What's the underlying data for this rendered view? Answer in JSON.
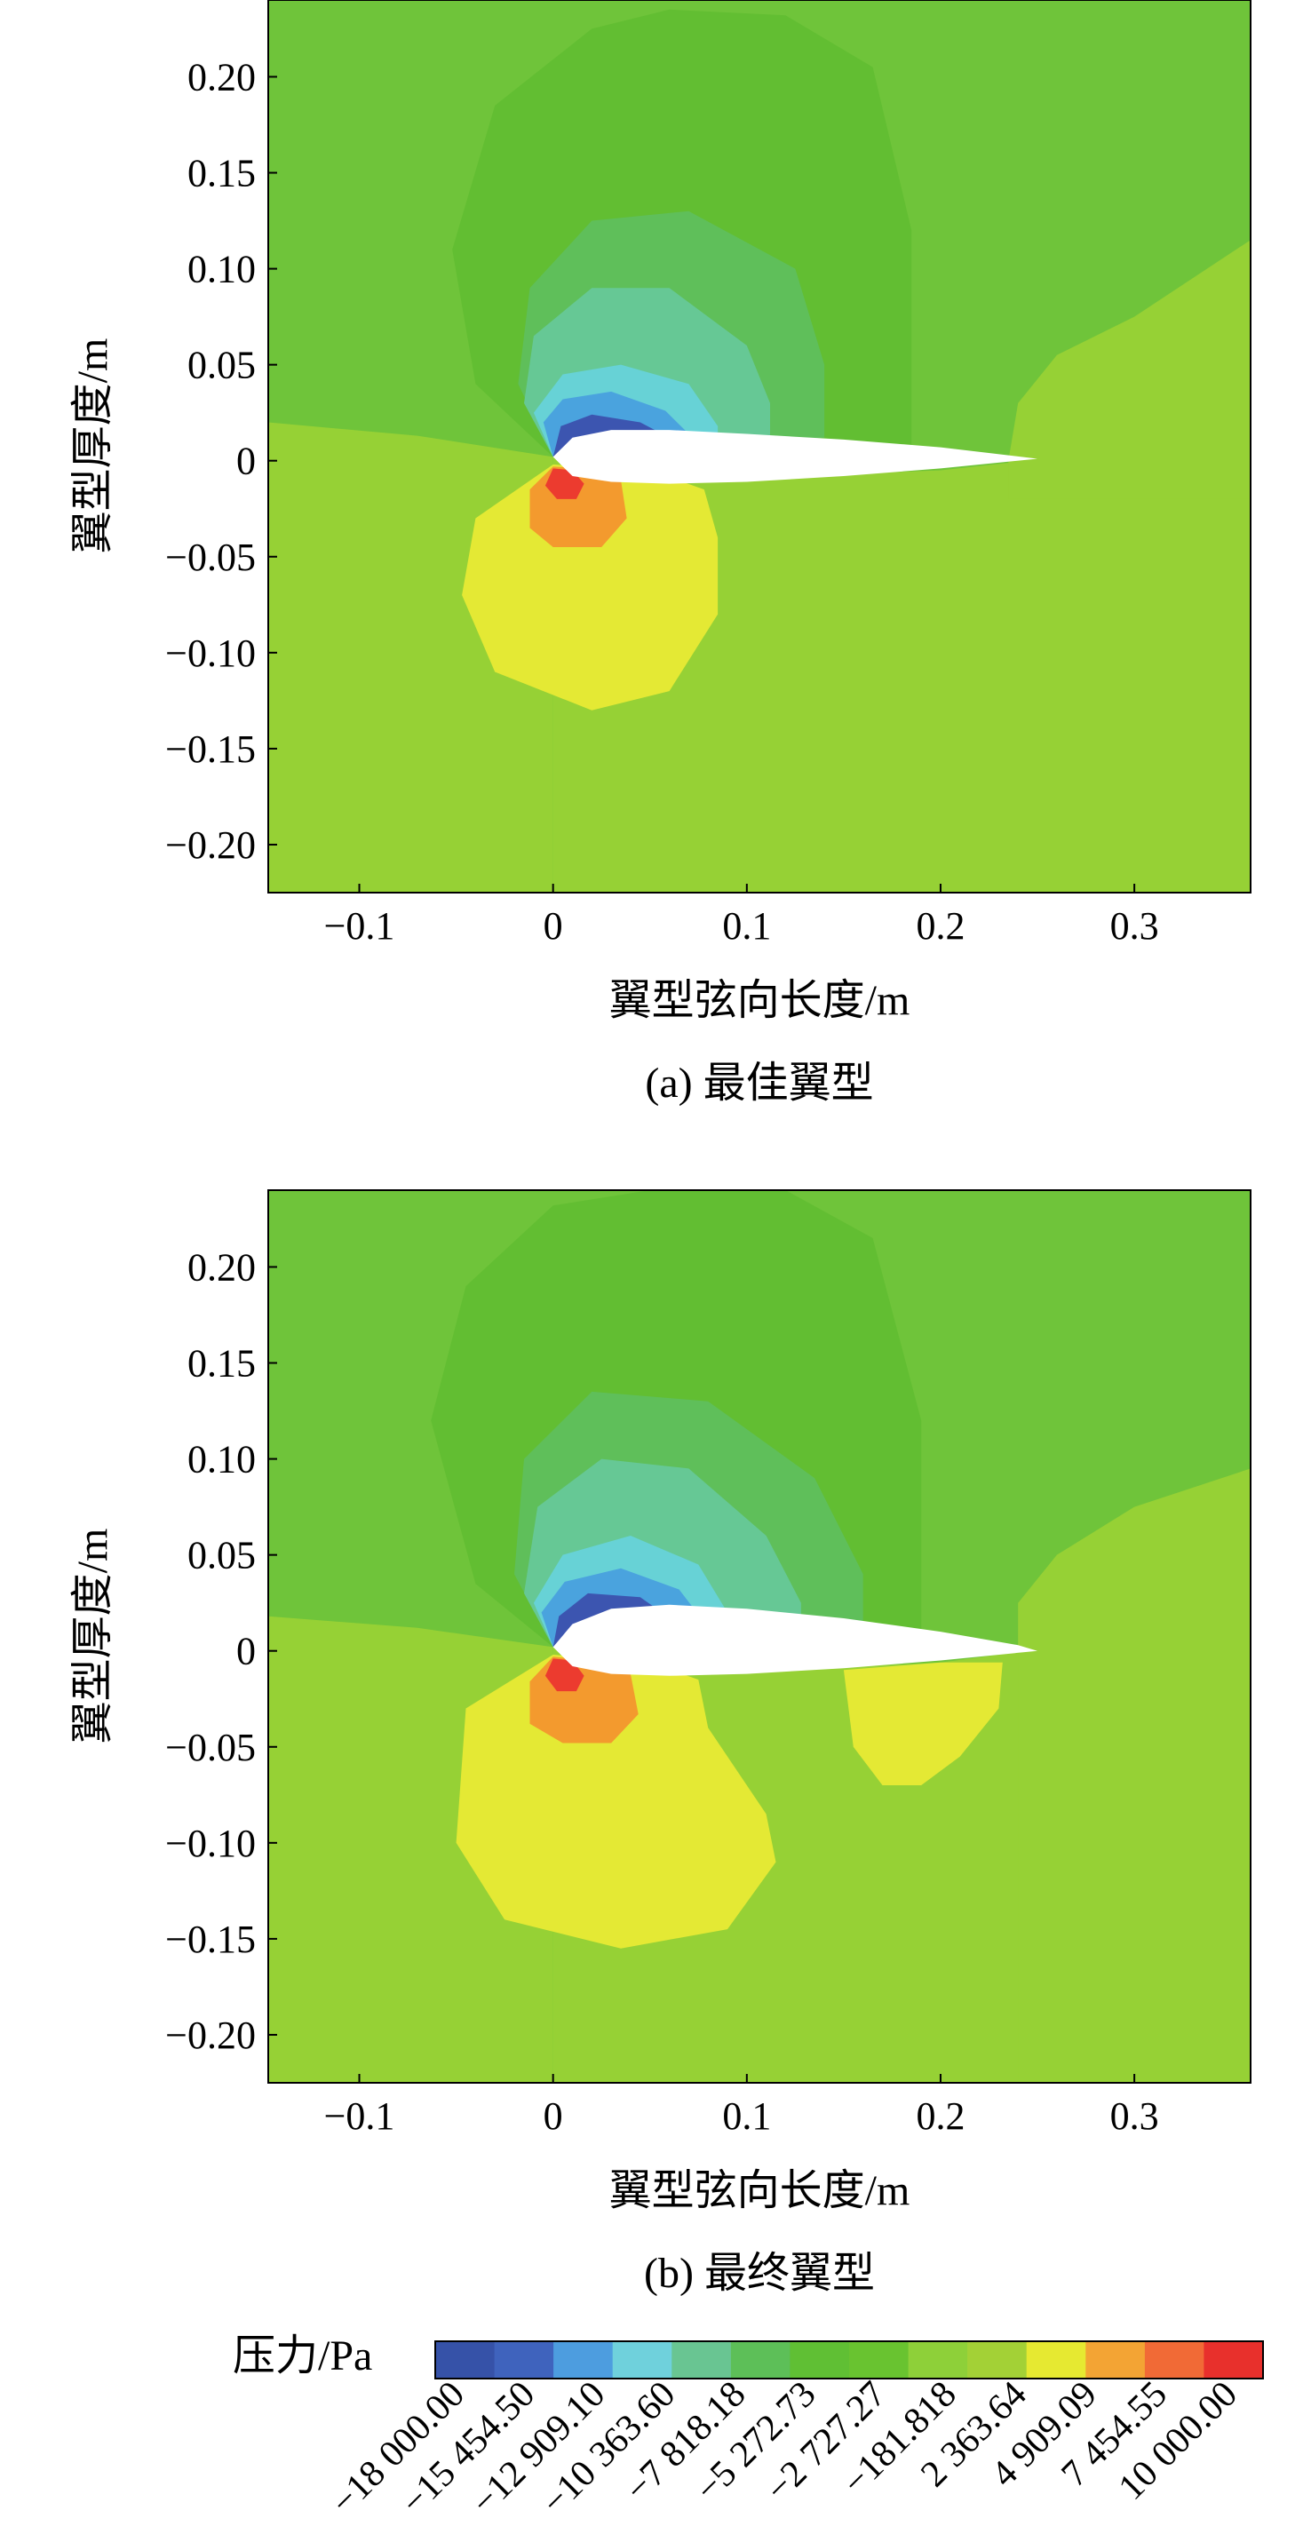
{
  "chart_data": [
    {
      "type": "heatmap",
      "caption": "(a) 最佳翼型",
      "xlabel": "翼型弦向长度/m",
      "ylabel": "翼型厚度/m",
      "xlim": [
        -0.147,
        0.36
      ],
      "ylim": [
        -0.225,
        0.24
      ],
      "xticks": [
        -0.1,
        0,
        0.1,
        0.2,
        0.3
      ],
      "xtick_labels": [
        "−0.1",
        "0",
        "0.1",
        "0.2",
        "0.3"
      ],
      "yticks": [
        0.2,
        0.15,
        0.1,
        0.05,
        0,
        -0.05,
        -0.1,
        -0.15,
        -0.2
      ],
      "ytick_labels": [
        "0.20",
        "0.15",
        "0.10",
        "0.05",
        "0",
        "−0.05",
        "−0.10",
        "−0.15",
        "−0.20"
      ],
      "background_color": "#6fc43a",
      "regions": [
        {
          "level": "-181.818",
          "color": "#96d135",
          "points": [
            [
              -0.147,
              0.02
            ],
            [
              -0.07,
              0.013
            ],
            [
              0.0,
              0.002
            ],
            [
              0.0,
              -0.225
            ],
            [
              -0.147,
              -0.225
            ]
          ]
        },
        {
          "level": "-181.818",
          "color": "#96d135",
          "points": [
            [
              0.0,
              0.002
            ],
            [
              0.05,
              -0.004
            ],
            [
              0.12,
              -0.008
            ],
            [
              0.2,
              -0.005
            ],
            [
              0.245,
              0.0
            ],
            [
              0.25,
              0.0
            ],
            [
              0.28,
              0.005
            ],
            [
              0.31,
              0.065
            ],
            [
              0.36,
              0.115
            ],
            [
              0.36,
              -0.225
            ],
            [
              0.0,
              -0.225
            ]
          ]
        },
        {
          "level": "-181.818",
          "color": "#96d135",
          "points": [
            [
              0.235,
              0.0
            ],
            [
              0.24,
              0.03
            ],
            [
              0.26,
              0.055
            ],
            [
              0.3,
              0.075
            ],
            [
              0.36,
              0.115
            ],
            [
              0.36,
              -0.02
            ],
            [
              0.235,
              -0.02
            ]
          ]
        },
        {
          "level": "-2727.27",
          "color": "#62be32",
          "points": [
            [
              0.0,
              0.002
            ],
            [
              -0.04,
              0.04
            ],
            [
              -0.052,
              0.11
            ],
            [
              -0.03,
              0.185
            ],
            [
              0.02,
              0.225
            ],
            [
              0.06,
              0.235
            ],
            [
              0.12,
              0.232
            ],
            [
              0.165,
              0.205
            ],
            [
              0.185,
              0.12
            ],
            [
              0.185,
              0.0
            ]
          ]
        },
        {
          "level": "-5272.73",
          "color": "#5fbf5a",
          "points": [
            [
              0.0,
              0.002
            ],
            [
              -0.018,
              0.04
            ],
            [
              -0.012,
              0.09
            ],
            [
              0.02,
              0.125
            ],
            [
              0.07,
              0.13
            ],
            [
              0.125,
              0.1
            ],
            [
              0.14,
              0.05
            ],
            [
              0.14,
              0.012
            ]
          ]
        },
        {
          "level": "-7818.18",
          "color": "#66c895",
          "points": [
            [
              0.0,
              0.002
            ],
            [
              -0.015,
              0.03
            ],
            [
              -0.01,
              0.065
            ],
            [
              0.02,
              0.09
            ],
            [
              0.06,
              0.09
            ],
            [
              0.1,
              0.06
            ],
            [
              0.112,
              0.03
            ],
            [
              0.112,
              0.012
            ]
          ]
        },
        {
          "level": "-10363.6",
          "color": "#67d2d6",
          "points": [
            [
              0.0,
              0.002
            ],
            [
              -0.01,
              0.025
            ],
            [
              0.005,
              0.045
            ],
            [
              0.035,
              0.05
            ],
            [
              0.07,
              0.04
            ],
            [
              0.085,
              0.018
            ],
            [
              0.085,
              0.012
            ]
          ]
        },
        {
          "level": "-12909.1",
          "color": "#4aa3de",
          "points": [
            [
              0.0,
              0.002
            ],
            [
              -0.005,
              0.02
            ],
            [
              0.005,
              0.032
            ],
            [
              0.03,
              0.036
            ],
            [
              0.058,
              0.026
            ],
            [
              0.07,
              0.014
            ]
          ]
        },
        {
          "level": "-15454.5",
          "color": "#3c55b0",
          "points": [
            [
              0.0,
              0.002
            ],
            [
              0.004,
              0.018
            ],
            [
              0.02,
              0.024
            ],
            [
              0.045,
              0.02
            ],
            [
              0.06,
              0.012
            ]
          ]
        },
        {
          "level": "4909.09",
          "color": "#e4e934",
          "points": [
            [
              0.0,
              -0.002
            ],
            [
              -0.04,
              -0.03
            ],
            [
              -0.047,
              -0.07
            ],
            [
              -0.03,
              -0.11
            ],
            [
              0.02,
              -0.13
            ],
            [
              0.06,
              -0.12
            ],
            [
              0.085,
              -0.08
            ],
            [
              0.085,
              -0.04
            ],
            [
              0.078,
              -0.015
            ],
            [
              0.05,
              -0.005
            ]
          ]
        },
        {
          "level": "7454.55",
          "color": "#f39a2e",
          "points": [
            [
              0.0,
              -0.003
            ],
            [
              -0.012,
              -0.015
            ],
            [
              -0.012,
              -0.035
            ],
            [
              0.0,
              -0.045
            ],
            [
              0.025,
              -0.045
            ],
            [
              0.038,
              -0.03
            ],
            [
              0.035,
              -0.01
            ],
            [
              0.015,
              -0.004
            ]
          ]
        },
        {
          "level": "10000",
          "color": "#ec3b2f",
          "points": [
            [
              0.0,
              -0.004
            ],
            [
              -0.004,
              -0.013
            ],
            [
              0.002,
              -0.02
            ],
            [
              0.012,
              -0.02
            ],
            [
              0.016,
              -0.012
            ],
            [
              0.01,
              -0.005
            ]
          ]
        }
      ],
      "airfoil_color": "#ffffff",
      "airfoil": [
        [
          0.0,
          0.002
        ],
        [
          0.01,
          0.012
        ],
        [
          0.03,
          0.016
        ],
        [
          0.06,
          0.016
        ],
        [
          0.1,
          0.014
        ],
        [
          0.15,
          0.011
        ],
        [
          0.2,
          0.007
        ],
        [
          0.25,
          0.001
        ],
        [
          0.2,
          -0.004
        ],
        [
          0.15,
          -0.008
        ],
        [
          0.1,
          -0.011
        ],
        [
          0.06,
          -0.012
        ],
        [
          0.03,
          -0.011
        ],
        [
          0.01,
          -0.008
        ]
      ]
    },
    {
      "type": "heatmap",
      "caption": "(b) 最终翼型",
      "xlabel": "翼型弦向长度/m",
      "ylabel": "翼型厚度/m",
      "xlim": [
        -0.147,
        0.36
      ],
      "ylim": [
        -0.225,
        0.24
      ],
      "xticks": [
        -0.1,
        0,
        0.1,
        0.2,
        0.3
      ],
      "xtick_labels": [
        "−0.1",
        "0",
        "0.1",
        "0.2",
        "0.3"
      ],
      "yticks": [
        0.2,
        0.15,
        0.1,
        0.05,
        0,
        -0.05,
        -0.1,
        -0.15,
        -0.2
      ],
      "ytick_labels": [
        "0.20",
        "0.15",
        "0.10",
        "0.05",
        "0",
        "−0.05",
        "−0.10",
        "−0.15",
        "−0.20"
      ],
      "background_color": "#6fc43a",
      "regions": [
        {
          "level": "-181.818",
          "color": "#96d135",
          "points": [
            [
              -0.147,
              0.018
            ],
            [
              -0.07,
              0.012
            ],
            [
              0.0,
              0.002
            ],
            [
              0.0,
              -0.225
            ],
            [
              -0.147,
              -0.225
            ]
          ]
        },
        {
          "level": "-181.818",
          "color": "#96d135",
          "points": [
            [
              0.0,
              0.002
            ],
            [
              0.05,
              -0.005
            ],
            [
              0.12,
              -0.01
            ],
            [
              0.2,
              -0.006
            ],
            [
              0.245,
              0.0
            ],
            [
              0.255,
              0.0
            ],
            [
              0.26,
              -0.225
            ],
            [
              0.0,
              -0.225
            ]
          ]
        },
        {
          "level": "-181.818",
          "color": "#96d135",
          "points": [
            [
              0.24,
              0.0
            ],
            [
              0.24,
              0.025
            ],
            [
              0.26,
              0.05
            ],
            [
              0.3,
              0.075
            ],
            [
              0.36,
              0.095
            ],
            [
              0.36,
              -0.225
            ],
            [
              0.24,
              -0.225
            ]
          ]
        },
        {
          "level": "-2727.27",
          "color": "#62be32",
          "points": [
            [
              0.0,
              0.002
            ],
            [
              -0.04,
              0.035
            ],
            [
              -0.063,
              0.12
            ],
            [
              -0.045,
              0.19
            ],
            [
              0.0,
              0.232
            ],
            [
              0.05,
              0.24
            ],
            [
              0.12,
              0.24
            ],
            [
              0.165,
              0.215
            ],
            [
              0.19,
              0.12
            ],
            [
              0.19,
              0.005
            ]
          ]
        },
        {
          "level": "-5272.73",
          "color": "#5fbf5a",
          "points": [
            [
              0.0,
              0.002
            ],
            [
              -0.02,
              0.04
            ],
            [
              -0.015,
              0.1
            ],
            [
              0.02,
              0.135
            ],
            [
              0.08,
              0.13
            ],
            [
              0.135,
              0.09
            ],
            [
              0.16,
              0.04
            ],
            [
              0.16,
              0.01
            ]
          ]
        },
        {
          "level": "-7818.18",
          "color": "#66c895",
          "points": [
            [
              0.0,
              0.002
            ],
            [
              -0.015,
              0.03
            ],
            [
              -0.008,
              0.075
            ],
            [
              0.025,
              0.1
            ],
            [
              0.07,
              0.095
            ],
            [
              0.11,
              0.06
            ],
            [
              0.128,
              0.025
            ],
            [
              0.128,
              0.01
            ]
          ]
        },
        {
          "level": "-10363.6",
          "color": "#67d2d6",
          "points": [
            [
              0.0,
              0.002
            ],
            [
              -0.01,
              0.025
            ],
            [
              0.005,
              0.05
            ],
            [
              0.04,
              0.06
            ],
            [
              0.075,
              0.045
            ],
            [
              0.09,
              0.02
            ],
            [
              0.09,
              0.012
            ]
          ]
        },
        {
          "level": "-12909.1",
          "color": "#4aa3de",
          "points": [
            [
              0.0,
              0.002
            ],
            [
              -0.006,
              0.02
            ],
            [
              0.006,
              0.036
            ],
            [
              0.035,
              0.043
            ],
            [
              0.065,
              0.032
            ],
            [
              0.078,
              0.015
            ]
          ]
        },
        {
          "level": "-15454.5",
          "color": "#3c55b0",
          "points": [
            [
              0.0,
              0.002
            ],
            [
              0.003,
              0.018
            ],
            [
              0.018,
              0.03
            ],
            [
              0.045,
              0.028
            ],
            [
              0.066,
              0.013
            ]
          ]
        },
        {
          "level": "4909.09",
          "color": "#e4e934",
          "points": [
            [
              0.0,
              -0.002
            ],
            [
              -0.045,
              -0.03
            ],
            [
              -0.05,
              -0.1
            ],
            [
              -0.025,
              -0.14
            ],
            [
              0.035,
              -0.155
            ],
            [
              0.09,
              -0.145
            ],
            [
              0.115,
              -0.11
            ],
            [
              0.11,
              -0.085
            ],
            [
              0.08,
              -0.04
            ],
            [
              0.075,
              -0.015
            ],
            [
              0.05,
              -0.006
            ]
          ]
        },
        {
          "level": "4909.09",
          "color": "#e4e934",
          "points": [
            [
              0.15,
              -0.01
            ],
            [
              0.155,
              -0.05
            ],
            [
              0.17,
              -0.07
            ],
            [
              0.19,
              -0.07
            ],
            [
              0.21,
              -0.055
            ],
            [
              0.23,
              -0.03
            ],
            [
              0.232,
              -0.006
            ],
            [
              0.2,
              -0.006
            ]
          ]
        },
        {
          "level": "7454.55",
          "color": "#f39a2e",
          "points": [
            [
              0.0,
              -0.003
            ],
            [
              -0.012,
              -0.016
            ],
            [
              -0.012,
              -0.038
            ],
            [
              0.005,
              -0.048
            ],
            [
              0.03,
              -0.048
            ],
            [
              0.044,
              -0.033
            ],
            [
              0.04,
              -0.012
            ],
            [
              0.018,
              -0.005
            ]
          ]
        },
        {
          "level": "10000",
          "color": "#ec3b2f",
          "points": [
            [
              0.0,
              -0.004
            ],
            [
              -0.004,
              -0.013
            ],
            [
              0.002,
              -0.021
            ],
            [
              0.012,
              -0.021
            ],
            [
              0.016,
              -0.013
            ],
            [
              0.01,
              -0.005
            ]
          ]
        }
      ],
      "airfoil_color": "#ffffff",
      "airfoil": [
        [
          0.0,
          0.002
        ],
        [
          0.01,
          0.014
        ],
        [
          0.03,
          0.022
        ],
        [
          0.06,
          0.024
        ],
        [
          0.1,
          0.022
        ],
        [
          0.15,
          0.017
        ],
        [
          0.2,
          0.01
        ],
        [
          0.24,
          0.003
        ],
        [
          0.25,
          0.0
        ],
        [
          0.2,
          -0.005
        ],
        [
          0.15,
          -0.009
        ],
        [
          0.1,
          -0.012
        ],
        [
          0.06,
          -0.013
        ],
        [
          0.03,
          -0.012
        ],
        [
          0.01,
          -0.008
        ]
      ]
    }
  ],
  "legend": {
    "title": "压力/Pa",
    "colors": [
      "#3652a8",
      "#3f63bd",
      "#4d9ddf",
      "#6fd1dc",
      "#69c592",
      "#5dbf58",
      "#60bf34",
      "#69c330",
      "#8ed039",
      "#a3d136",
      "#e6e931",
      "#f3a434",
      "#f16a36",
      "#e8302c"
    ],
    "labels": [
      "−18 000.00",
      "−15 454.50",
      "−12 909.10",
      "−10 363.60",
      "−7 818.18",
      "−5 272.73",
      "−2 727.27",
      "−181.818",
      "2 363.64",
      "4 909.09",
      "7 454.55",
      "10 000.00"
    ]
  }
}
